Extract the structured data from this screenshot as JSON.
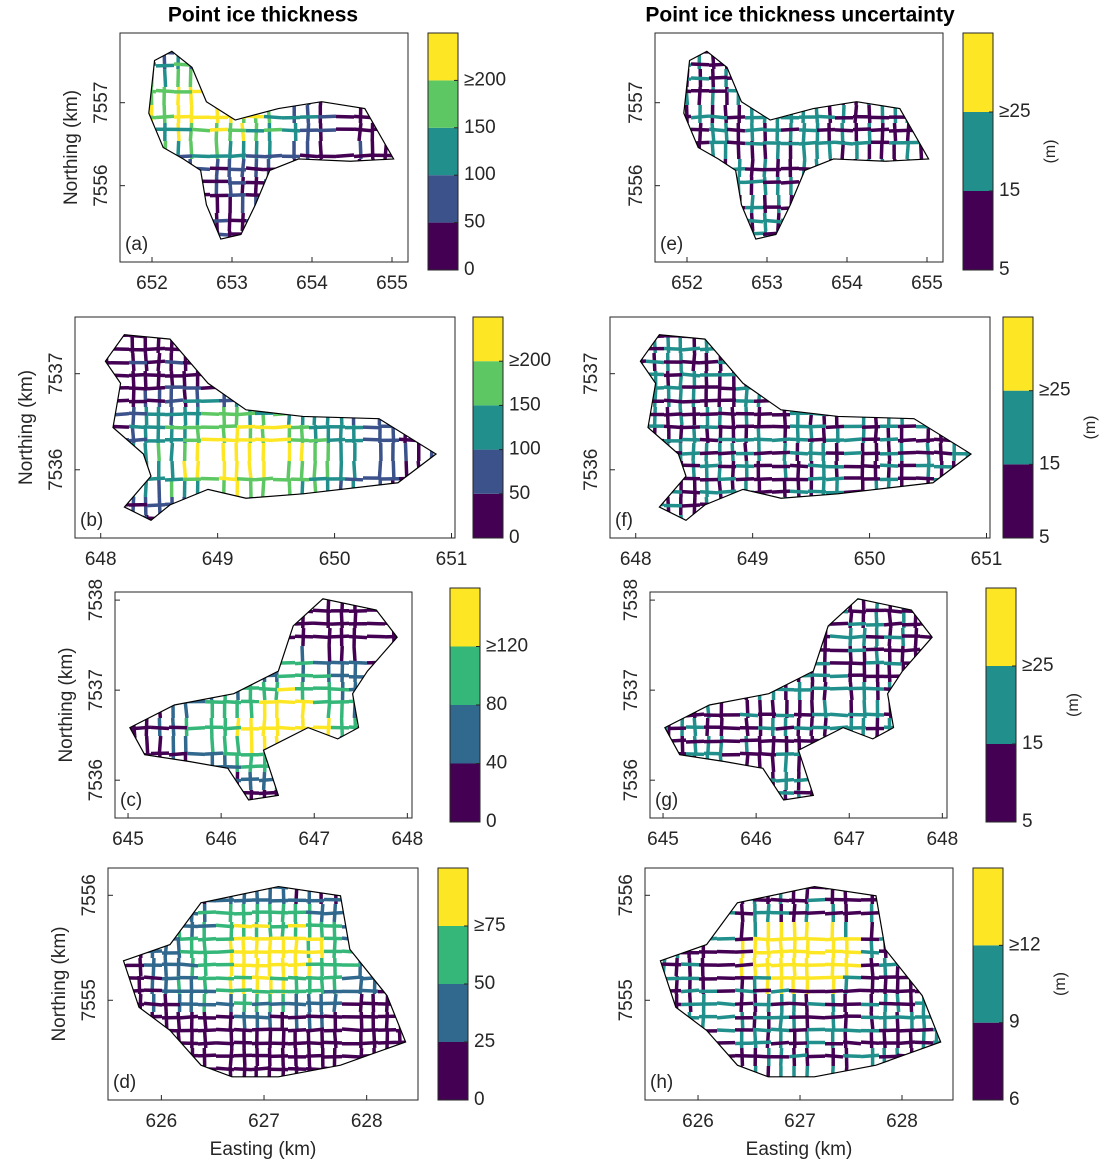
{
  "titles": [
    "Point ice thickness",
    "Point ice thickness uncertainty"
  ],
  "xlabel": "Easting (km)",
  "ylabel": "Northing (km)",
  "panels": [
    {
      "label": "(a)",
      "xlim": [
        651.6,
        655.2
      ],
      "ylim": [
        7555.08,
        7557.84
      ],
      "xticks": [
        652,
        653,
        654,
        655
      ],
      "yticks": [
        7556,
        7557
      ],
      "colorbar": {
        "lim": [
          0,
          250
        ],
        "ticks": [
          0,
          50,
          100,
          150,
          {
            "value": 200,
            "label": "≥200"
          }
        ],
        "colors": [
          "#440154",
          "#3b528b",
          "#21908d",
          "#5dc863",
          "#fde725"
        ]
      }
    },
    {
      "label": "(b)",
      "xlim": [
        647.78,
        651.03
      ],
      "ylim": [
        7535.29,
        7537.59
      ],
      "xticks": [
        648,
        649,
        650,
        651
      ],
      "yticks": [
        7536,
        7537
      ],
      "colorbar": {
        "lim": [
          0,
          250
        ],
        "ticks": [
          0,
          50,
          100,
          150,
          {
            "value": 200,
            "label": "≥200"
          }
        ],
        "colors": [
          "#440154",
          "#3b528b",
          "#21908d",
          "#5dc863",
          "#fde725"
        ]
      }
    },
    {
      "label": "(c)",
      "xlim": [
        644.86,
        648.05
      ],
      "ylim": [
        7535.58,
        7538.09
      ],
      "xticks": [
        645,
        646,
        647,
        648
      ],
      "yticks": [
        7536,
        7537,
        7538
      ],
      "colorbar": {
        "lim": [
          0,
          160
        ],
        "ticks": [
          0,
          40,
          80,
          {
            "value": 120,
            "label": "≥120"
          }
        ],
        "colors": [
          "#440154",
          "#31688e",
          "#35b779",
          "#fde725"
        ]
      }
    },
    {
      "label": "(d)",
      "xlim": [
        625.48,
        628.5
      ],
      "ylim": [
        7554.05,
        7556.26
      ],
      "xticks": [
        626,
        627,
        628
      ],
      "yticks": [
        7555,
        7556
      ],
      "colorbar": {
        "lim": [
          0,
          100
        ],
        "ticks": [
          0,
          25,
          50,
          {
            "value": 75,
            "label": "≥75"
          }
        ],
        "colors": [
          "#440154",
          "#31688e",
          "#35b779",
          "#fde725"
        ]
      }
    },
    {
      "label": "(e)",
      "xlim": [
        651.6,
        655.2
      ],
      "ylim": [
        7555.08,
        7557.84
      ],
      "xticks": [
        652,
        653,
        654,
        655
      ],
      "yticks": [
        7556,
        7557
      ],
      "colorbar": {
        "lim": [
          5,
          35
        ],
        "ticks": [
          5,
          15,
          {
            "value": 25,
            "label": "≥25"
          }
        ],
        "colors": [
          "#440154",
          "#21908d",
          "#fde725"
        ],
        "unit": "(m)"
      }
    },
    {
      "label": "(f)",
      "xlim": [
        647.78,
        651.03
      ],
      "ylim": [
        7535.29,
        7537.59
      ],
      "xticks": [
        648,
        649,
        650,
        651
      ],
      "yticks": [
        7536,
        7537
      ],
      "colorbar": {
        "lim": [
          5,
          35
        ],
        "ticks": [
          5,
          15,
          {
            "value": 25,
            "label": "≥25"
          }
        ],
        "colors": [
          "#440154",
          "#21908d",
          "#fde725"
        ],
        "unit": "(m)"
      }
    },
    {
      "label": "(g)",
      "xlim": [
        644.86,
        648.05
      ],
      "ylim": [
        7535.58,
        7538.09
      ],
      "xticks": [
        645,
        646,
        647,
        648
      ],
      "yticks": [
        7536,
        7537,
        7538
      ],
      "colorbar": {
        "lim": [
          5,
          35
        ],
        "ticks": [
          5,
          15,
          {
            "value": 25,
            "label": "≥25"
          }
        ],
        "colors": [
          "#440154",
          "#21908d",
          "#fde725"
        ],
        "unit": "(m)"
      }
    },
    {
      "label": "(h)",
      "xlim": [
        625.48,
        628.5
      ],
      "ylim": [
        7554.05,
        7556.26
      ],
      "xticks": [
        626,
        627,
        628
      ],
      "yticks": [
        7555,
        7556
      ],
      "colorbar": {
        "lim": [
          6,
          15
        ],
        "ticks": [
          6,
          9,
          {
            "value": 12,
            "label": "≥12"
          }
        ],
        "colors": [
          "#440154",
          "#21908d",
          "#fde725"
        ],
        "unit": "(m)"
      }
    }
  ]
}
